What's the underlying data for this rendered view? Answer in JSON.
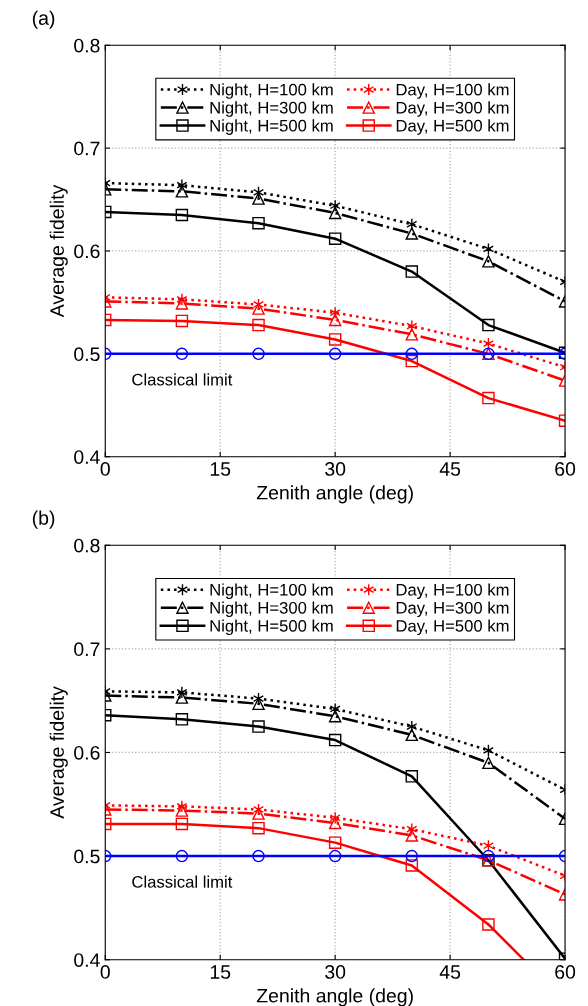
{
  "chart_data": [
    {
      "type": "line",
      "title": "(a)",
      "xlabel": "Zenith angle (deg)",
      "ylabel": "Average fidelity",
      "x": [
        0,
        10,
        20,
        30,
        40,
        50,
        60
      ],
      "xlim": [
        0,
        60
      ],
      "xticks": [
        0,
        15,
        30,
        45,
        60
      ],
      "ylim": [
        0.4,
        0.8
      ],
      "yticks": [
        0.4,
        0.5,
        0.6,
        0.7,
        0.8
      ],
      "grid": true,
      "legend": "top",
      "annotations": [
        {
          "text": "Classical limit",
          "x": 10,
          "y": 0.5
        }
      ],
      "series": [
        {
          "name": "Night, H=100 km",
          "color": "#000000",
          "marker": "cross",
          "line_style": "dotted",
          "values": [
            0.666,
            0.664,
            0.657,
            0.644,
            0.626,
            0.602,
            0.57
          ]
        },
        {
          "name": "Night, H=300 km",
          "color": "#000000",
          "marker": "triangle",
          "line_style": "dashdot",
          "values": [
            0.66,
            0.658,
            0.651,
            0.637,
            0.617,
            0.59,
            0.551
          ]
        },
        {
          "name": "Night, H=500 km",
          "color": "#000000",
          "marker": "square",
          "line_style": "solid",
          "values": [
            0.638,
            0.635,
            0.627,
            0.612,
            0.58,
            0.528,
            0.501
          ]
        },
        {
          "name": "Day, H=100 km",
          "color": "#ff0000",
          "marker": "cross",
          "line_style": "dotted",
          "values": [
            0.555,
            0.553,
            0.548,
            0.54,
            0.527,
            0.51,
            0.487
          ]
        },
        {
          "name": "Day, H=300 km",
          "color": "#ff0000",
          "marker": "triangle",
          "line_style": "dashdot",
          "values": [
            0.551,
            0.549,
            0.544,
            0.533,
            0.519,
            0.5,
            0.474
          ]
        },
        {
          "name": "Day, H=500 km",
          "color": "#ff0000",
          "marker": "square",
          "line_style": "solid",
          "values": [
            0.533,
            0.532,
            0.528,
            0.514,
            0.493,
            0.457,
            0.435
          ]
        },
        {
          "color": "#0000ff",
          "marker": "circle",
          "line_style": "solid",
          "values": [
            0.5,
            0.5,
            0.5,
            0.5,
            0.5,
            0.5,
            0.5
          ]
        }
      ]
    },
    {
      "type": "line",
      "title": "(b)",
      "xlabel": "Zenith angle (deg)",
      "ylabel": "Average fidelity",
      "x": [
        0,
        10,
        20,
        30,
        40,
        50,
        60
      ],
      "xlim": [
        0,
        60
      ],
      "xticks": [
        0,
        15,
        30,
        45,
        60
      ],
      "ylim": [
        0.4,
        0.8
      ],
      "yticks": [
        0.4,
        0.5,
        0.6,
        0.7,
        0.8
      ],
      "grid": true,
      "legend": "top",
      "annotations": [
        {
          "text": "Classical limit",
          "x": 10,
          "y": 0.5
        }
      ],
      "series": [
        {
          "name": "Night, H=100 km",
          "color": "#000000",
          "marker": "cross",
          "line_style": "dotted",
          "values": [
            0.659,
            0.658,
            0.652,
            0.642,
            0.625,
            0.602,
            0.564
          ]
        },
        {
          "name": "Night, H=300 km",
          "color": "#000000",
          "marker": "triangle",
          "line_style": "dashdot",
          "values": [
            0.655,
            0.653,
            0.647,
            0.635,
            0.617,
            0.59,
            0.536
          ]
        },
        {
          "name": "Night, H=500 km",
          "color": "#000000",
          "marker": "square",
          "line_style": "solid",
          "values": [
            0.636,
            0.632,
            0.625,
            0.612,
            0.577,
            0.496,
            0.401
          ]
        },
        {
          "name": "Day, H=100 km",
          "color": "#ff0000",
          "marker": "cross",
          "line_style": "dotted",
          "values": [
            0.549,
            0.548,
            0.545,
            0.537,
            0.526,
            0.51,
            0.481
          ]
        },
        {
          "name": "Day, H=300 km",
          "color": "#ff0000",
          "marker": "triangle",
          "line_style": "dashdot",
          "values": [
            0.545,
            0.544,
            0.541,
            0.532,
            0.52,
            0.496,
            0.463
          ]
        },
        {
          "name": "Day, H=500 km",
          "color": "#ff0000",
          "marker": "square",
          "line_style": "solid",
          "values": [
            0.531,
            0.531,
            0.527,
            0.513,
            0.491,
            0.434,
            null
          ]
        },
        {
          "color": "#ff0000",
          "marker": "none",
          "line_style": "solid",
          "x": [
            50,
            54.6
          ],
          "values": [
            0.434,
            0.4
          ]
        },
        {
          "color": "#0000ff",
          "marker": "circle",
          "line_style": "solid",
          "values": [
            0.5,
            0.5,
            0.5,
            0.5,
            0.5,
            0.5,
            0.5
          ]
        }
      ]
    }
  ]
}
